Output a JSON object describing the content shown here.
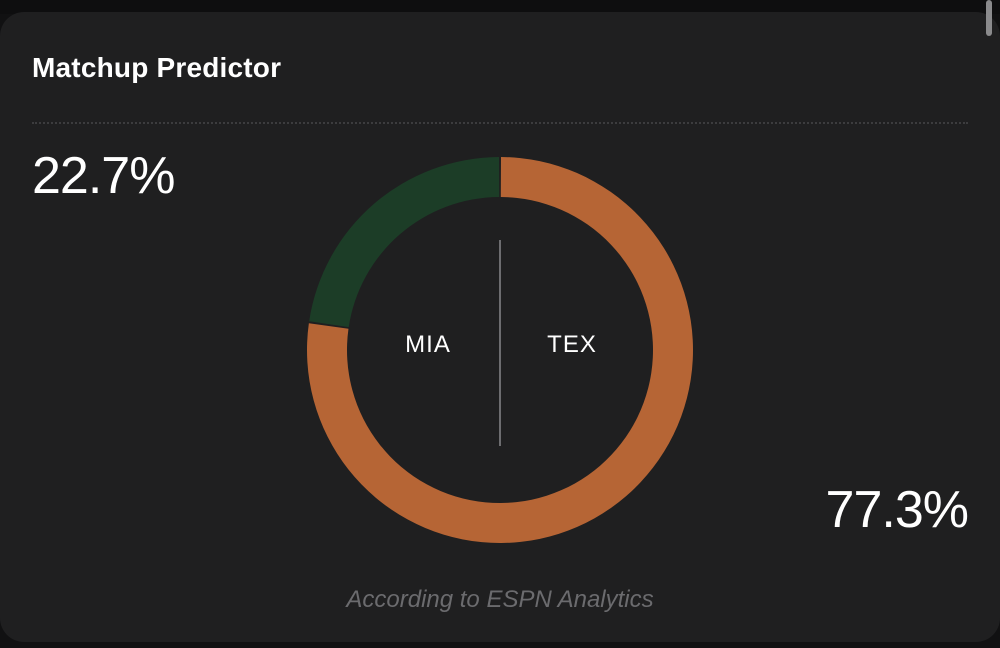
{
  "card": {
    "title": "Matchup Predictor",
    "footer": "According to ESPN Analytics"
  },
  "teams": {
    "left": {
      "abbr": "MIA",
      "win_pct_label": "22.7%"
    },
    "right": {
      "abbr": "TEX",
      "win_pct_label": "77.3%"
    }
  },
  "chart_data": {
    "type": "pie",
    "variant": "donut",
    "categories": [
      "MIA",
      "TEX"
    ],
    "values": [
      22.7,
      77.3
    ],
    "colors": [
      "#1c3d27",
      "#b66535"
    ]
  }
}
